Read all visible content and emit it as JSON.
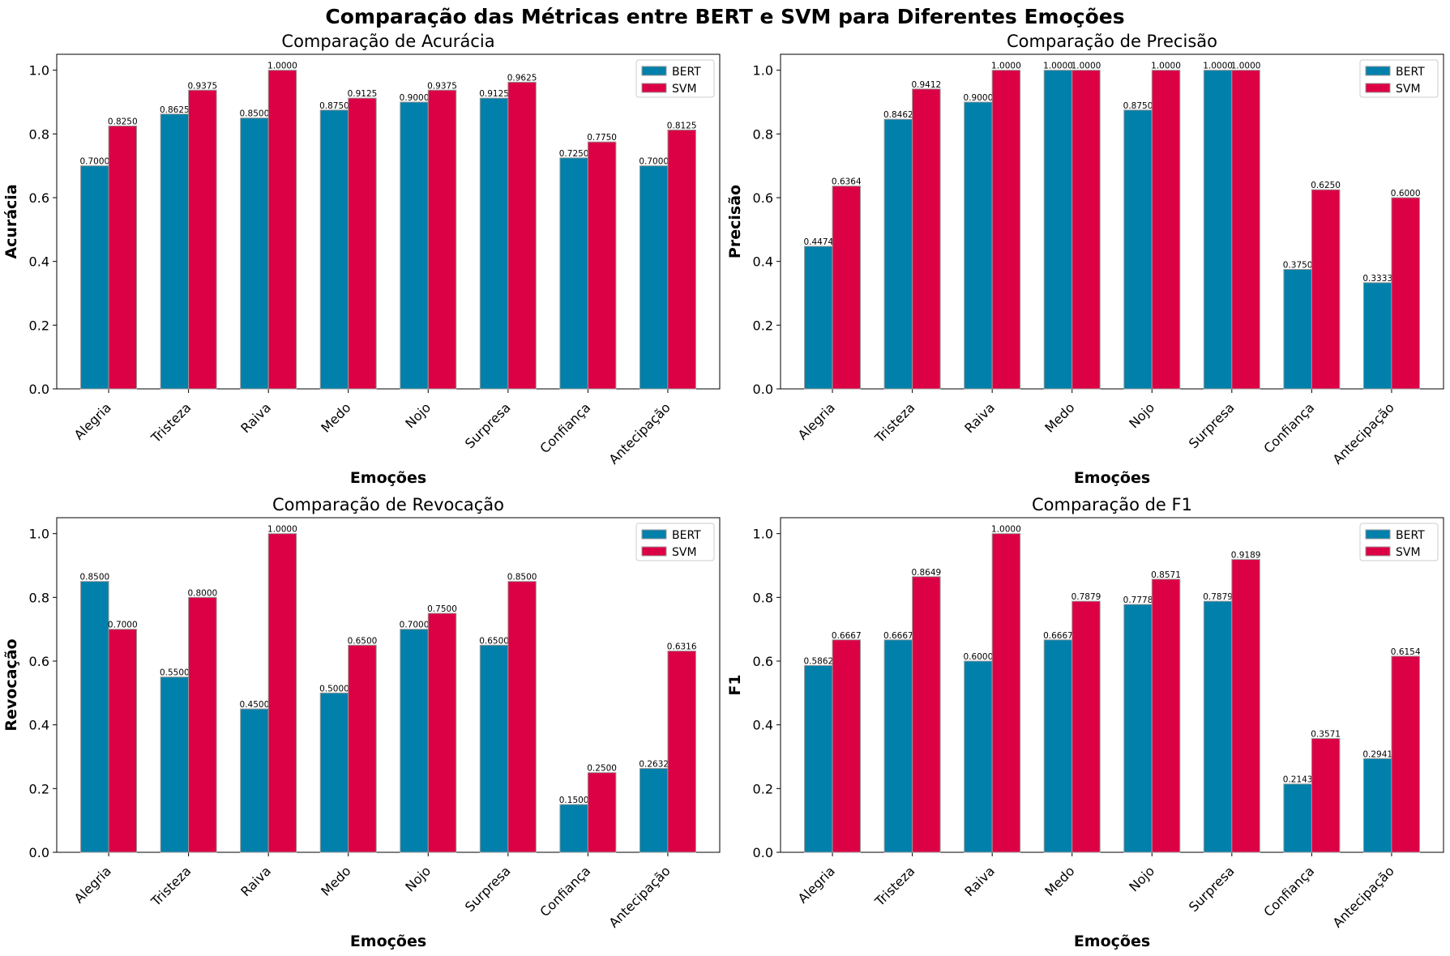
{
  "figure_title": "Comparação das Métricas entre BERT e SVM para Diferentes Emoções",
  "colors": {
    "bert": "#0080aa",
    "svm": "#dc0045",
    "bar_edge": "#9a9a9a"
  },
  "chart_data": [
    {
      "type": "bar",
      "title": "Comparação de Acurácia",
      "xlabel": "Emoções",
      "ylabel": "Acurácia",
      "ylim": [
        0,
        1.05
      ],
      "yticks": [
        "0.0",
        "0.2",
        "0.4",
        "0.6",
        "0.8",
        "1.0"
      ],
      "legend": "top-right",
      "categories": [
        "Alegria",
        "Tristeza",
        "Raiva",
        "Medo",
        "Nojo",
        "Surpresa",
        "Confiança",
        "Antecipação"
      ],
      "series": [
        {
          "name": "BERT",
          "values": [
            0.7,
            0.8625,
            0.85,
            0.875,
            0.9,
            0.9125,
            0.725,
            0.7
          ],
          "labels": [
            "0.7000",
            "0.8625",
            "0.8500",
            "0.8750",
            "0.9000",
            "0.9125",
            "0.7250",
            "0.7000"
          ]
        },
        {
          "name": "SVM",
          "values": [
            0.825,
            0.9375,
            1.0,
            0.9125,
            0.9375,
            0.9625,
            0.775,
            0.8125
          ],
          "labels": [
            "0.8250",
            "0.9375",
            "1.0000",
            "0.9125",
            "0.9375",
            "0.9625",
            "0.7750",
            "0.8125"
          ]
        }
      ]
    },
    {
      "type": "bar",
      "title": "Comparação de Precisão",
      "xlabel": "Emoções",
      "ylabel": "Precisão",
      "ylim": [
        0,
        1.05
      ],
      "yticks": [
        "0.0",
        "0.2",
        "0.4",
        "0.6",
        "0.8",
        "1.0"
      ],
      "legend": "top-right",
      "categories": [
        "Alegria",
        "Tristeza",
        "Raiva",
        "Medo",
        "Nojo",
        "Surpresa",
        "Confiança",
        "Antecipação"
      ],
      "series": [
        {
          "name": "BERT",
          "values": [
            0.4474,
            0.8462,
            0.9,
            1.0,
            0.875,
            1.0,
            0.375,
            0.3333
          ],
          "labels": [
            "0.4474",
            "0.8462",
            "0.9000",
            "1.0000",
            "0.8750",
            "1.0000",
            "0.3750",
            "0.3333"
          ]
        },
        {
          "name": "SVM",
          "values": [
            0.6364,
            0.9412,
            1.0,
            1.0,
            1.0,
            1.0,
            0.625,
            0.6
          ],
          "labels": [
            "0.6364",
            "0.9412",
            "1.0000",
            "1.0000",
            "1.0000",
            "1.0000",
            "0.6250",
            "0.6000"
          ]
        }
      ]
    },
    {
      "type": "bar",
      "title": "Comparação de Revocação",
      "xlabel": "Emoções",
      "ylabel": "Revocação",
      "ylim": [
        0,
        1.05
      ],
      "yticks": [
        "0.0",
        "0.2",
        "0.4",
        "0.6",
        "0.8",
        "1.0"
      ],
      "legend": "top-right",
      "categories": [
        "Alegria",
        "Tristeza",
        "Raiva",
        "Medo",
        "Nojo",
        "Surpresa",
        "Confiança",
        "Antecipação"
      ],
      "series": [
        {
          "name": "BERT",
          "values": [
            0.85,
            0.55,
            0.45,
            0.5,
            0.7,
            0.65,
            0.15,
            0.2632
          ],
          "labels": [
            "0.8500",
            "0.5500",
            "0.4500",
            "0.5000",
            "0.7000",
            "0.6500",
            "0.1500",
            "0.2632"
          ]
        },
        {
          "name": "SVM",
          "values": [
            0.7,
            0.8,
            1.0,
            0.65,
            0.75,
            0.85,
            0.25,
            0.6316
          ],
          "labels": [
            "0.7000",
            "0.8000",
            "1.0000",
            "0.6500",
            "0.7500",
            "0.8500",
            "0.2500",
            "0.6316"
          ]
        }
      ]
    },
    {
      "type": "bar",
      "title": "Comparação de F1",
      "xlabel": "Emoções",
      "ylabel": "F1",
      "ylim": [
        0,
        1.05
      ],
      "yticks": [
        "0.0",
        "0.2",
        "0.4",
        "0.6",
        "0.8",
        "1.0"
      ],
      "legend": "top-right",
      "categories": [
        "Alegria",
        "Tristeza",
        "Raiva",
        "Medo",
        "Nojo",
        "Surpresa",
        "Confiança",
        "Antecipação"
      ],
      "series": [
        {
          "name": "BERT",
          "values": [
            0.5862,
            0.6667,
            0.6,
            0.6667,
            0.7778,
            0.7879,
            0.2143,
            0.2941
          ],
          "labels": [
            "0.5862",
            "0.6667",
            "0.6000",
            "0.6667",
            "0.7778",
            "0.7879",
            "0.2143",
            "0.2941"
          ]
        },
        {
          "name": "SVM",
          "values": [
            0.6667,
            0.8649,
            1.0,
            0.7879,
            0.8571,
            0.9189,
            0.3571,
            0.6154
          ],
          "labels": [
            "0.6667",
            "0.8649",
            "1.0000",
            "0.7879",
            "0.8571",
            "0.9189",
            "0.3571",
            "0.6154"
          ]
        }
      ]
    }
  ]
}
